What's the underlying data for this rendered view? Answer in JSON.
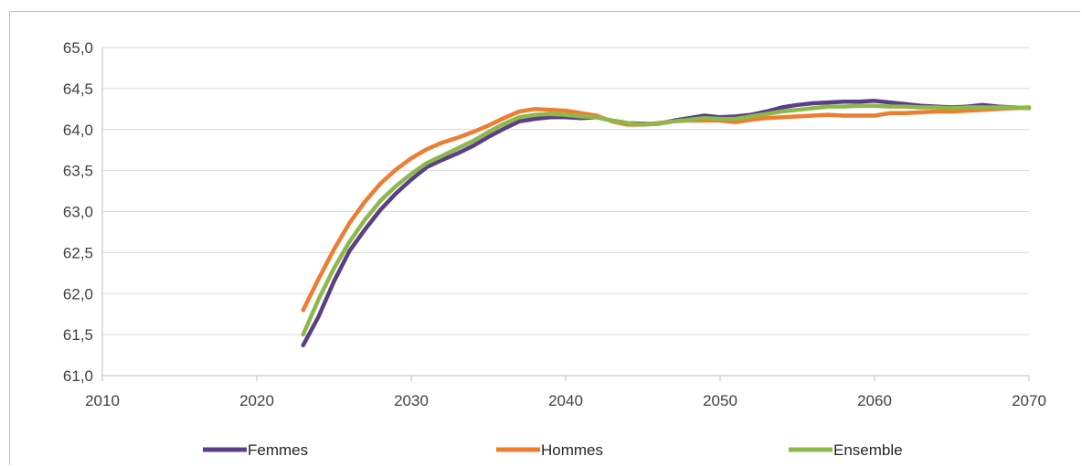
{
  "chart_data": {
    "type": "line",
    "title": "",
    "xlabel": "",
    "ylabel": "",
    "xlim": [
      2010,
      2070
    ],
    "ylim": [
      61.0,
      65.0
    ],
    "x_ticks": [
      "2010",
      "2020",
      "2030",
      "2040",
      "2050",
      "2060",
      "2070"
    ],
    "y_ticks": [
      "61,0",
      "61,5",
      "62,0",
      "62,5",
      "63,0",
      "63,5",
      "64,0",
      "64,5",
      "65,0"
    ],
    "grid": "horizontal",
    "legend_position": "bottom",
    "x": [
      2023,
      2024,
      2025,
      2026,
      2027,
      2028,
      2029,
      2030,
      2031,
      2032,
      2033,
      2034,
      2035,
      2036,
      2037,
      2038,
      2039,
      2040,
      2041,
      2042,
      2043,
      2044,
      2045,
      2046,
      2047,
      2048,
      2049,
      2050,
      2051,
      2052,
      2053,
      2054,
      2055,
      2056,
      2057,
      2058,
      2059,
      2060,
      2061,
      2062,
      2063,
      2064,
      2065,
      2066,
      2067,
      2068,
      2069,
      2070
    ],
    "series": [
      {
        "name": "Femmes",
        "color": "#5b3f86",
        "values": [
          61.37,
          61.72,
          62.15,
          62.52,
          62.78,
          63.02,
          63.22,
          63.39,
          63.54,
          63.63,
          63.71,
          63.8,
          63.91,
          64.01,
          64.1,
          64.13,
          64.15,
          64.15,
          64.14,
          64.15,
          64.11,
          64.08,
          64.07,
          64.07,
          64.11,
          64.14,
          64.17,
          64.15,
          64.16,
          64.18,
          64.22,
          64.27,
          64.3,
          64.32,
          64.33,
          64.34,
          64.34,
          64.35,
          64.33,
          64.31,
          64.29,
          64.28,
          64.27,
          64.28,
          64.3,
          64.28,
          64.27,
          64.26
        ]
      },
      {
        "name": "Hommes",
        "color": "#ed7d31",
        "values": [
          61.8,
          62.18,
          62.54,
          62.86,
          63.12,
          63.34,
          63.51,
          63.65,
          63.76,
          63.84,
          63.9,
          63.97,
          64.05,
          64.14,
          64.22,
          64.25,
          64.24,
          64.23,
          64.2,
          64.17,
          64.1,
          64.06,
          64.06,
          64.08,
          64.1,
          64.11,
          64.11,
          64.11,
          64.09,
          64.12,
          64.14,
          64.15,
          64.16,
          64.17,
          64.18,
          64.17,
          64.17,
          64.17,
          64.2,
          64.2,
          64.21,
          64.22,
          64.22,
          64.23,
          64.24,
          64.25,
          64.26,
          64.27
        ]
      },
      {
        "name": "Ensemble",
        "color": "#8db84a",
        "values": [
          61.5,
          61.93,
          62.31,
          62.63,
          62.9,
          63.13,
          63.31,
          63.46,
          63.59,
          63.68,
          63.77,
          63.86,
          63.97,
          64.07,
          64.15,
          64.18,
          64.19,
          64.18,
          64.16,
          64.15,
          64.11,
          64.08,
          64.06,
          64.07,
          64.1,
          64.12,
          64.14,
          64.13,
          64.13,
          64.16,
          64.19,
          64.22,
          64.24,
          64.26,
          64.28,
          64.28,
          64.29,
          64.29,
          64.28,
          64.28,
          64.27,
          64.27,
          64.26,
          64.27,
          64.27,
          64.27,
          64.27,
          64.26
        ]
      }
    ]
  }
}
